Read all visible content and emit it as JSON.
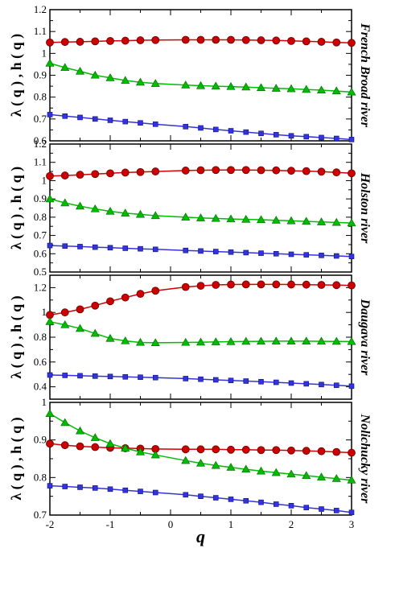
{
  "chart_data": [
    {
      "type": "line",
      "panel_label": "French Broad river",
      "ylabel": "λ ( q ) , h ( q )",
      "ylim": [
        0.6,
        1.2
      ],
      "yticks": [
        "0.6",
        "0.7",
        "0.8",
        "0.9",
        "1",
        "1.1",
        "1.2"
      ],
      "ytick_values": [
        0.6,
        0.7,
        0.8,
        0.9,
        1.0,
        1.1,
        1.2
      ],
      "xlim": [
        -2,
        3
      ],
      "series": [
        {
          "color": "#cc0000",
          "marker": "circle",
          "x": [
            -2,
            -1.75,
            -1.5,
            -1.25,
            -1,
            -0.75,
            -0.5,
            -0.25,
            0.25,
            0.5,
            0.75,
            1,
            1.25,
            1.5,
            1.75,
            2,
            2.25,
            2.5,
            2.75,
            3
          ],
          "y": [
            1.05,
            1.052,
            1.053,
            1.055,
            1.057,
            1.058,
            1.06,
            1.061,
            1.062,
            1.062,
            1.062,
            1.062,
            1.061,
            1.06,
            1.059,
            1.057,
            1.055,
            1.053,
            1.05,
            1.048
          ]
        },
        {
          "color": "#00bb00",
          "marker": "triangle",
          "x": [
            -2,
            -1.75,
            -1.5,
            -1.25,
            -1,
            -0.75,
            -0.5,
            -0.25,
            0.25,
            0.5,
            0.75,
            1,
            1.25,
            1.5,
            1.75,
            2,
            2.25,
            2.5,
            2.75,
            3
          ],
          "y": [
            0.955,
            0.935,
            0.918,
            0.9,
            0.888,
            0.876,
            0.868,
            0.862,
            0.855,
            0.852,
            0.85,
            0.848,
            0.846,
            0.843,
            0.84,
            0.838,
            0.835,
            0.832,
            0.828,
            0.823
          ]
        },
        {
          "color": "#3333dd",
          "marker": "square",
          "x": [
            -2,
            -1.75,
            -1.5,
            -1.25,
            -1,
            -0.75,
            -0.5,
            -0.25,
            0.25,
            0.5,
            0.75,
            1,
            1.25,
            1.5,
            1.75,
            2,
            2.25,
            2.5,
            2.75,
            3
          ],
          "y": [
            0.72,
            0.713,
            0.707,
            0.7,
            0.694,
            0.688,
            0.682,
            0.676,
            0.665,
            0.659,
            0.652,
            0.646,
            0.64,
            0.634,
            0.628,
            0.623,
            0.619,
            0.615,
            0.611,
            0.606
          ]
        }
      ]
    },
    {
      "type": "line",
      "panel_label": "Holston river",
      "ylabel": "λ ( q ) , h ( q )",
      "ylim": [
        0.5,
        1.2
      ],
      "yticks": [
        "0.5",
        "0.6",
        "0.7",
        "0.8",
        "0.9",
        "1",
        "1.1",
        "1.2"
      ],
      "ytick_values": [
        0.5,
        0.6,
        0.7,
        0.8,
        0.9,
        1.0,
        1.1,
        1.2
      ],
      "xlim": [
        -2,
        3
      ],
      "series": [
        {
          "color": "#cc0000",
          "marker": "circle",
          "x": [
            -2,
            -1.75,
            -1.5,
            -1.25,
            -1,
            -0.75,
            -0.5,
            -0.25,
            0.25,
            0.5,
            0.75,
            1,
            1.25,
            1.5,
            1.75,
            2,
            2.25,
            2.5,
            2.75,
            3
          ],
          "y": [
            1.025,
            1.028,
            1.032,
            1.036,
            1.04,
            1.044,
            1.047,
            1.05,
            1.055,
            1.057,
            1.058,
            1.058,
            1.058,
            1.057,
            1.056,
            1.054,
            1.052,
            1.049,
            1.045,
            1.04
          ]
        },
        {
          "color": "#00bb00",
          "marker": "triangle",
          "x": [
            -2,
            -1.75,
            -1.5,
            -1.25,
            -1,
            -0.75,
            -0.5,
            -0.25,
            0.25,
            0.5,
            0.75,
            1,
            1.25,
            1.5,
            1.75,
            2,
            2.25,
            2.5,
            2.75,
            3
          ],
          "y": [
            0.9,
            0.878,
            0.86,
            0.845,
            0.832,
            0.822,
            0.815,
            0.808,
            0.8,
            0.796,
            0.793,
            0.79,
            0.788,
            0.786,
            0.783,
            0.78,
            0.777,
            0.774,
            0.771,
            0.768
          ]
        },
        {
          "color": "#3333dd",
          "marker": "square",
          "x": [
            -2,
            -1.75,
            -1.5,
            -1.25,
            -1,
            -0.75,
            -0.5,
            -0.25,
            0.25,
            0.5,
            0.75,
            1,
            1.25,
            1.5,
            1.75,
            2,
            2.25,
            2.5,
            2.75,
            3
          ],
          "y": [
            0.645,
            0.642,
            0.639,
            0.636,
            0.633,
            0.63,
            0.627,
            0.624,
            0.618,
            0.615,
            0.612,
            0.609,
            0.606,
            0.603,
            0.6,
            0.597,
            0.594,
            0.591,
            0.588,
            0.585
          ]
        }
      ]
    },
    {
      "type": "line",
      "panel_label": "Daugava river",
      "ylabel": "λ ( q ) , h ( q )",
      "ylim": [
        0.3,
        1.3
      ],
      "yticks": [
        "0.4",
        "0.6",
        "0.8",
        "1",
        "1.2"
      ],
      "ytick_values": [
        0.4,
        0.6,
        0.8,
        1.0,
        1.2
      ],
      "xlim": [
        -2,
        3
      ],
      "series": [
        {
          "color": "#cc0000",
          "marker": "circle",
          "x": [
            -2,
            -1.75,
            -1.5,
            -1.25,
            -1,
            -0.75,
            -0.5,
            -0.25,
            0.25,
            0.5,
            0.75,
            1,
            1.25,
            1.5,
            1.75,
            2,
            2.25,
            2.5,
            2.75,
            3
          ],
          "y": [
            0.98,
            1.0,
            1.025,
            1.055,
            1.09,
            1.12,
            1.15,
            1.175,
            1.205,
            1.215,
            1.222,
            1.225,
            1.226,
            1.226,
            1.226,
            1.225,
            1.224,
            1.222,
            1.22,
            1.218
          ]
        },
        {
          "color": "#00bb00",
          "marker": "triangle",
          "x": [
            -2,
            -1.75,
            -1.5,
            -1.25,
            -1,
            -0.75,
            -0.5,
            -0.25,
            0.25,
            0.5,
            0.75,
            1,
            1.25,
            1.5,
            1.75,
            2,
            2.25,
            2.5,
            2.75,
            3
          ],
          "y": [
            0.925,
            0.9,
            0.87,
            0.83,
            0.79,
            0.77,
            0.758,
            0.755,
            0.758,
            0.76,
            0.762,
            0.764,
            0.766,
            0.767,
            0.768,
            0.768,
            0.768,
            0.767,
            0.766,
            0.765
          ]
        },
        {
          "color": "#3333dd",
          "marker": "square",
          "x": [
            -2,
            -1.75,
            -1.5,
            -1.25,
            -1,
            -0.75,
            -0.5,
            -0.25,
            0.25,
            0.5,
            0.75,
            1,
            1.25,
            1.5,
            1.75,
            2,
            2.25,
            2.5,
            2.75,
            3
          ],
          "y": [
            0.495,
            0.492,
            0.489,
            0.486,
            0.483,
            0.48,
            0.477,
            0.474,
            0.466,
            0.461,
            0.456,
            0.451,
            0.446,
            0.441,
            0.436,
            0.43,
            0.424,
            0.418,
            0.412,
            0.405
          ]
        }
      ]
    },
    {
      "type": "line",
      "panel_label": "Nolichucky river",
      "ylabel": "λ ( q ) , h ( q )",
      "xlabel": "q",
      "ylim": [
        0.7,
        1.0
      ],
      "yticks": [
        "0.7",
        "0.8",
        "0.9",
        "1"
      ],
      "ytick_values": [
        0.7,
        0.8,
        0.9,
        1.0
      ],
      "xlim": [
        -2,
        3
      ],
      "xticks": [
        "-2",
        "-1",
        "0",
        "1",
        "2",
        "3"
      ],
      "xtick_values": [
        -2,
        -1,
        0,
        1,
        2,
        3
      ],
      "series": [
        {
          "color": "#cc0000",
          "marker": "circle",
          "x": [
            -2,
            -1.75,
            -1.5,
            -1.25,
            -1,
            -0.75,
            -0.5,
            -0.25,
            0.25,
            0.5,
            0.75,
            1,
            1.25,
            1.5,
            1.75,
            2,
            2.25,
            2.5,
            2.75,
            3
          ],
          "y": [
            0.89,
            0.886,
            0.883,
            0.881,
            0.879,
            0.878,
            0.877,
            0.876,
            0.875,
            0.875,
            0.875,
            0.874,
            0.874,
            0.873,
            0.873,
            0.872,
            0.871,
            0.87,
            0.868,
            0.866
          ]
        },
        {
          "color": "#00bb00",
          "marker": "triangle",
          "x": [
            -2,
            -1.75,
            -1.5,
            -1.25,
            -1,
            -0.75,
            -0.5,
            -0.25,
            0.25,
            0.5,
            0.75,
            1,
            1.25,
            1.5,
            1.75,
            2,
            2.25,
            2.5,
            2.75,
            3
          ],
          "y": [
            0.97,
            0.946,
            0.924,
            0.906,
            0.89,
            0.878,
            0.868,
            0.86,
            0.845,
            0.838,
            0.832,
            0.827,
            0.822,
            0.817,
            0.813,
            0.809,
            0.805,
            0.801,
            0.797,
            0.793
          ]
        },
        {
          "color": "#3333dd",
          "marker": "square",
          "x": [
            -2,
            -1.75,
            -1.5,
            -1.25,
            -1,
            -0.75,
            -0.5,
            -0.25,
            0.25,
            0.5,
            0.75,
            1,
            1.25,
            1.5,
            1.75,
            2,
            2.25,
            2.5,
            2.75,
            3
          ],
          "y": [
            0.778,
            0.776,
            0.774,
            0.772,
            0.769,
            0.766,
            0.763,
            0.76,
            0.754,
            0.75,
            0.746,
            0.742,
            0.738,
            0.734,
            0.729,
            0.725,
            0.72,
            0.716,
            0.712,
            0.707
          ]
        }
      ]
    }
  ]
}
